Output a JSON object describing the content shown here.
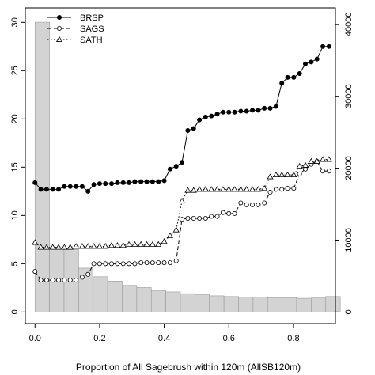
{
  "chart_data": {
    "type": "line",
    "xlabel": "Proportion of All Sagebrush within 120m (AllSB120m)",
    "ylabel": "",
    "y2label": "",
    "xlim": [
      -0.03,
      0.93
    ],
    "ylim": [
      -1.2,
      31.5
    ],
    "y2lim": [
      -1610,
      42290
    ],
    "xticks": [
      "0.0",
      "0.2",
      "0.4",
      "0.6",
      "0.8"
    ],
    "xtick_values": [
      0,
      0.2,
      0.4,
      0.6,
      0.8
    ],
    "yticks": [
      "0",
      "5",
      "10",
      "15",
      "20",
      "25",
      "30"
    ],
    "ytick_values": [
      0,
      5,
      10,
      15,
      20,
      25,
      30
    ],
    "y2ticks": [
      "0",
      "10000",
      "20000",
      "30000",
      "40000"
    ],
    "y2tick_values": [
      0,
      10000,
      20000,
      30000,
      40000
    ],
    "grid": false,
    "legend_position": "top-left",
    "histogram": {
      "axis": "right",
      "bin_width": 0.045,
      "bin_start": 0,
      "counts": [
        40300,
        8900,
        8700,
        6100,
        4900,
        4300,
        3700,
        3400,
        3000,
        2800,
        2550,
        2400,
        2250,
        2150,
        2100,
        2050,
        2000,
        2000,
        1900,
        1950,
        2150
      ]
    },
    "series": [
      {
        "name": "BRSP",
        "line_style": "solid",
        "marker": "filled-circle",
        "x": [
          0.0,
          0.018,
          0.036,
          0.055,
          0.073,
          0.091,
          0.109,
          0.127,
          0.146,
          0.164,
          0.182,
          0.2,
          0.218,
          0.237,
          0.255,
          0.273,
          0.291,
          0.309,
          0.328,
          0.346,
          0.364,
          0.382,
          0.4,
          0.418,
          0.437,
          0.455,
          0.473,
          0.491,
          0.509,
          0.528,
          0.546,
          0.564,
          0.582,
          0.6,
          0.618,
          0.637,
          0.655,
          0.673,
          0.691,
          0.71,
          0.728,
          0.746,
          0.764,
          0.782,
          0.801,
          0.819,
          0.837,
          0.855,
          0.873,
          0.891,
          0.91
        ],
        "y": [
          13.4,
          12.7,
          12.7,
          12.7,
          12.7,
          13.0,
          13.0,
          13.0,
          13.0,
          12.5,
          13.2,
          13.3,
          13.3,
          13.3,
          13.4,
          13.4,
          13.4,
          13.5,
          13.5,
          13.5,
          13.5,
          13.5,
          13.6,
          14.8,
          15.1,
          15.5,
          18.8,
          19.0,
          19.9,
          20.2,
          20.3,
          20.5,
          20.7,
          20.7,
          20.7,
          20.8,
          20.8,
          20.9,
          20.9,
          21.1,
          21.1,
          21.3,
          23.7,
          24.3,
          24.3,
          24.7,
          25.7,
          25.9,
          26.2,
          27.5,
          27.5
        ]
      },
      {
        "name": "SAGS",
        "line_style": "dashed",
        "marker": "open-circle",
        "x": [
          0.0,
          0.018,
          0.036,
          0.055,
          0.073,
          0.091,
          0.109,
          0.127,
          0.146,
          0.164,
          0.182,
          0.2,
          0.218,
          0.237,
          0.255,
          0.273,
          0.291,
          0.309,
          0.328,
          0.346,
          0.364,
          0.382,
          0.4,
          0.418,
          0.437,
          0.455,
          0.473,
          0.491,
          0.509,
          0.528,
          0.546,
          0.564,
          0.582,
          0.6,
          0.618,
          0.637,
          0.655,
          0.673,
          0.691,
          0.71,
          0.728,
          0.746,
          0.764,
          0.782,
          0.801,
          0.819,
          0.837,
          0.855,
          0.873,
          0.891,
          0.91
        ],
        "y": [
          4.2,
          3.3,
          3.3,
          3.3,
          3.3,
          3.3,
          3.3,
          3.3,
          3.6,
          3.9,
          5.0,
          5.0,
          5.0,
          5.0,
          5.0,
          5.0,
          5.0,
          5.0,
          5.1,
          5.1,
          5.1,
          5.1,
          5.1,
          5.1,
          5.3,
          9.6,
          9.7,
          9.7,
          9.7,
          9.7,
          9.9,
          9.9,
          10.3,
          10.2,
          10.2,
          11.3,
          11.1,
          11.1,
          11.1,
          11.3,
          12.4,
          12.7,
          12.7,
          12.8,
          12.8,
          14.3,
          14.8,
          15.3,
          15.6,
          14.6,
          14.6
        ]
      },
      {
        "name": "SATH",
        "line_style": "dotted",
        "marker": "open-triangle",
        "x": [
          0.0,
          0.018,
          0.036,
          0.055,
          0.073,
          0.091,
          0.109,
          0.127,
          0.146,
          0.164,
          0.182,
          0.2,
          0.218,
          0.237,
          0.255,
          0.273,
          0.291,
          0.309,
          0.328,
          0.346,
          0.364,
          0.382,
          0.4,
          0.418,
          0.437,
          0.455,
          0.473,
          0.491,
          0.509,
          0.528,
          0.546,
          0.564,
          0.582,
          0.6,
          0.618,
          0.637,
          0.655,
          0.673,
          0.691,
          0.71,
          0.728,
          0.746,
          0.764,
          0.782,
          0.801,
          0.819,
          0.837,
          0.855,
          0.873,
          0.891,
          0.91
        ],
        "y": [
          7.2,
          6.7,
          6.7,
          6.7,
          6.7,
          6.7,
          6.7,
          6.8,
          6.8,
          6.8,
          6.8,
          6.8,
          6.8,
          6.9,
          6.9,
          6.9,
          7.0,
          7.0,
          7.0,
          7.0,
          7.0,
          7.0,
          7.3,
          7.9,
          8.5,
          11.5,
          12.6,
          12.6,
          12.7,
          12.7,
          12.7,
          12.7,
          12.7,
          12.7,
          12.7,
          12.7,
          12.7,
          12.7,
          12.7,
          12.8,
          14.0,
          14.2,
          14.2,
          14.2,
          14.2,
          15.1,
          15.2,
          15.6,
          15.6,
          15.8,
          15.8
        ]
      }
    ]
  }
}
